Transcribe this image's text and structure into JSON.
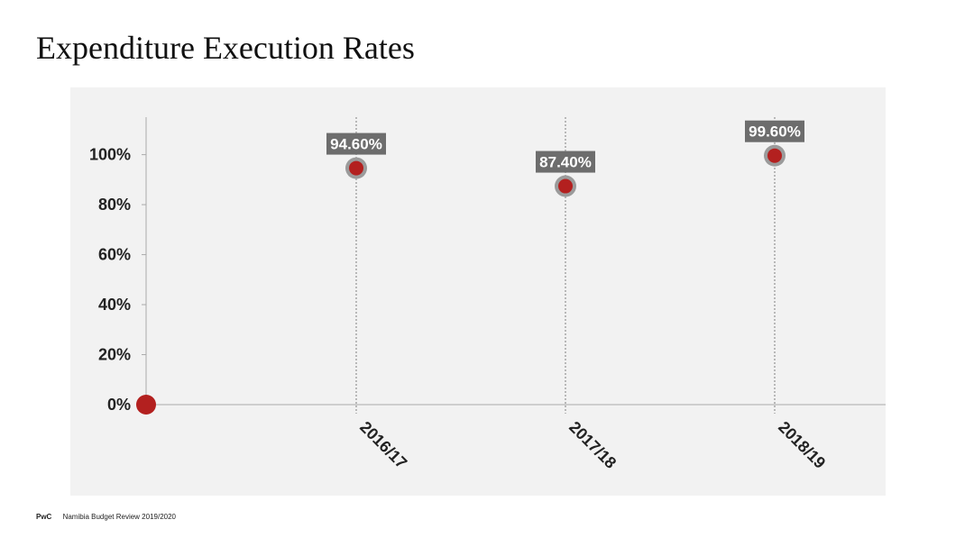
{
  "slide": {
    "title": "Expenditure Execution Rates"
  },
  "footer": {
    "brand": "PwC",
    "text": "Namibia Budget Review 2019/2020"
  },
  "colors": {
    "marker": "#b3201f",
    "marker_ring": "#9b9b9b",
    "label_bg": "#6d6d6d",
    "axis": "#aaaaaa",
    "panel": "#f2f2f2"
  },
  "chart_data": {
    "type": "scatter",
    "categories": [
      "",
      "2016/17",
      "2017/18",
      "2018/19"
    ],
    "values": [
      0,
      94.6,
      87.4,
      99.6
    ],
    "data_labels": [
      "",
      "94.60%",
      "87.40%",
      "99.60%"
    ],
    "yticks": [
      "0%",
      "20%",
      "40%",
      "60%",
      "80%",
      "100%"
    ],
    "ylim": [
      0,
      115
    ],
    "grid": false,
    "drop_lines": true,
    "legend": "none"
  }
}
